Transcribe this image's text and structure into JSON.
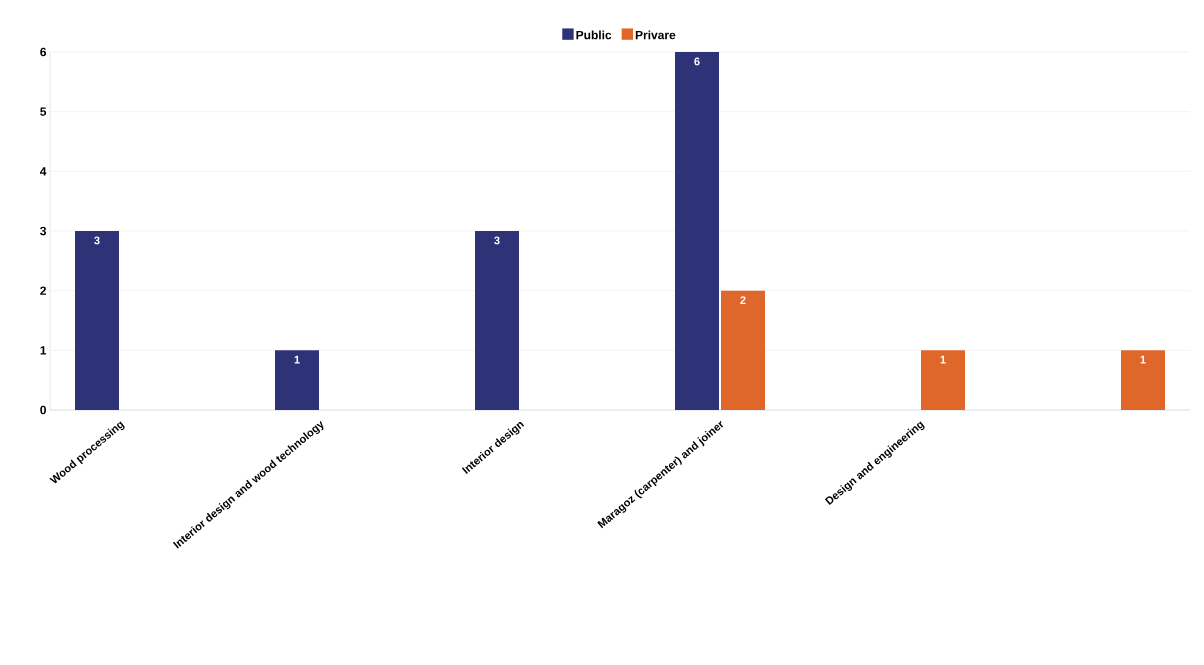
{
  "chart_data": {
    "type": "bar",
    "categories": [
      "Wood processing",
      "Interior design and wood technology",
      "Interior design",
      "Maragoz (carpenter) and joiner",
      "Design and engineering",
      null
    ],
    "series": [
      {
        "name": "Public",
        "color": "#2e3377",
        "values": [
          3,
          1,
          3,
          6,
          null,
          null
        ]
      },
      {
        "name": "Privare",
        "color": "#e0672a",
        "values": [
          null,
          null,
          null,
          2,
          1,
          1
        ]
      }
    ],
    "ylim": [
      0,
      6
    ],
    "yticks": [
      0,
      1,
      2,
      3,
      4,
      5,
      6
    ],
    "grid": "y",
    "legend": "top",
    "data_labels": true
  }
}
